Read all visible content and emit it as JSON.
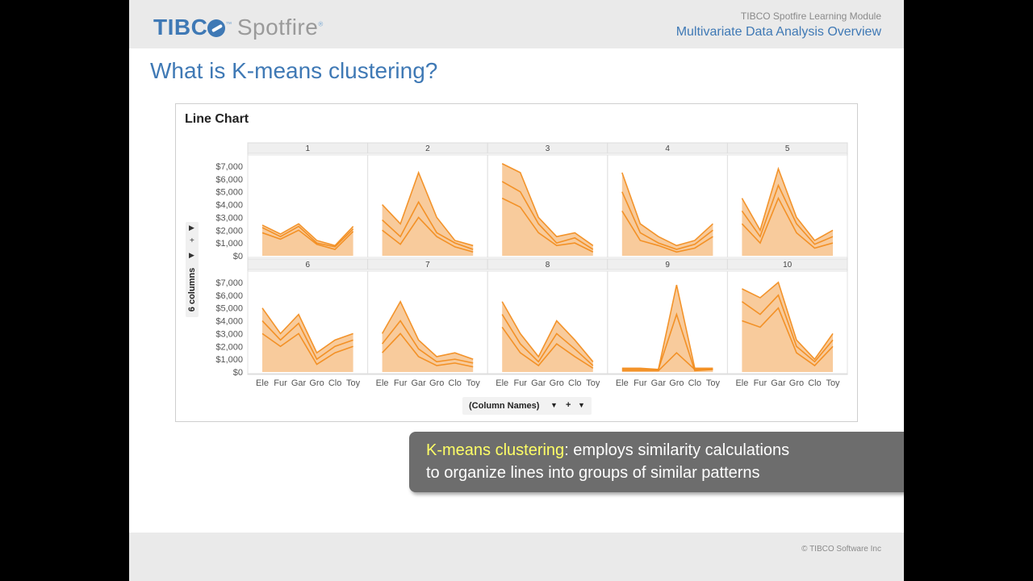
{
  "header": {
    "logo_text": "TIBCO Spotfire",
    "module_name": "TIBCO Spotfire Learning Module",
    "module_title": "Multivariate Data Analysis Overview"
  },
  "slide": {
    "title": "What is K-means clustering?"
  },
  "chart": {
    "title": "Line Chart",
    "x_axis_control_label": "(Column Names)",
    "trellis_control_label": "6 columns"
  },
  "chart_data": {
    "type": "line",
    "title": "Line Chart",
    "panels": [
      "1",
      "2",
      "3",
      "4",
      "5",
      "6",
      "7",
      "8",
      "9",
      "10"
    ],
    "categories": [
      "Ele",
      "Fur",
      "Gar",
      "Gro",
      "Clo",
      "Toy"
    ],
    "y_ticks": [
      "$0",
      "$1,000",
      "$2,000",
      "$3,000",
      "$4,000",
      "$5,000",
      "$6,000",
      "$7,000"
    ],
    "ylim": [
      0,
      7500
    ],
    "panel_profiles": {
      "1": [
        [
          2400,
          1700,
          2500,
          1200,
          800,
          2300
        ],
        [
          2200,
          1500,
          2300,
          1000,
          700,
          2100
        ],
        [
          1800,
          1300,
          2000,
          900,
          500,
          1900
        ]
      ],
      "2": [
        [
          4000,
          2500,
          6500,
          3000,
          1200,
          800
        ],
        [
          2800,
          1500,
          4200,
          1800,
          1000,
          500
        ],
        [
          2000,
          900,
          3000,
          1500,
          700,
          300
        ]
      ],
      "3": [
        [
          7200,
          6500,
          3000,
          1500,
          1800,
          800
        ],
        [
          5800,
          5000,
          2500,
          1000,
          1400,
          500
        ],
        [
          4500,
          3800,
          1800,
          800,
          1000,
          300
        ]
      ],
      "4": [
        [
          6500,
          2500,
          1500,
          800,
          1200,
          2500
        ],
        [
          5000,
          1800,
          1000,
          500,
          900,
          2000
        ],
        [
          3500,
          1200,
          800,
          300,
          600,
          1500
        ]
      ],
      "5": [
        [
          4500,
          2000,
          6800,
          3000,
          1200,
          2000
        ],
        [
          3500,
          1500,
          5500,
          2500,
          900,
          1500
        ],
        [
          2500,
          1000,
          4500,
          1800,
          600,
          1000
        ]
      ],
      "6": [
        [
          5000,
          3000,
          4500,
          1500,
          2500,
          3000
        ],
        [
          4000,
          2500,
          3800,
          1000,
          2000,
          2500
        ],
        [
          3000,
          2000,
          3000,
          600,
          1500,
          2000
        ]
      ],
      "7": [
        [
          3000,
          5500,
          2500,
          1200,
          1500,
          1000
        ],
        [
          2200,
          4000,
          1800,
          800,
          1000,
          700
        ],
        [
          1500,
          3000,
          1200,
          500,
          700,
          400
        ]
      ],
      "8": [
        [
          5500,
          3000,
          1200,
          4000,
          2500,
          800
        ],
        [
          4500,
          2200,
          800,
          3000,
          1800,
          500
        ],
        [
          3500,
          1500,
          500,
          2200,
          1200,
          300
        ]
      ],
      "9": [
        [
          200,
          200,
          200,
          6800,
          300,
          300
        ],
        [
          100,
          100,
          100,
          1500,
          200,
          200
        ],
        [
          300,
          300,
          200,
          4500,
          100,
          200
        ]
      ],
      "10": [
        [
          6500,
          5800,
          7000,
          2500,
          1000,
          3000
        ],
        [
          5500,
          4500,
          6000,
          2000,
          800,
          2500
        ],
        [
          4000,
          3500,
          5000,
          1500,
          500,
          2000
        ]
      ]
    },
    "x_axis_label": "(Column Names)",
    "grid": true
  },
  "callout": {
    "term": "K-means clustering",
    "line1_rest": ":  employs similarity calculations",
    "line2": "to organize lines into groups of similar patterns"
  },
  "footer": {
    "copyright": "© TIBCO Software Inc"
  },
  "colors": {
    "accent": "#3f79b5",
    "line": "#f28b1a",
    "fill": "#f5b97b"
  }
}
